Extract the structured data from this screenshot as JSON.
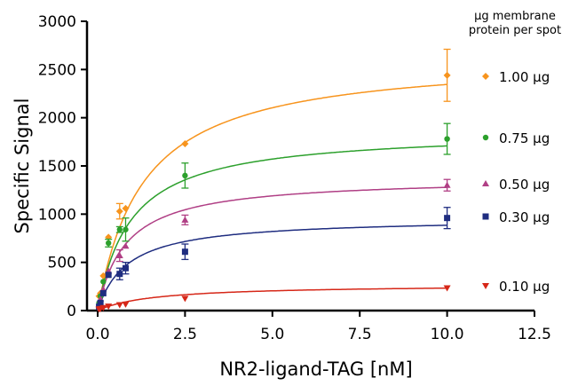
{
  "chart_data": {
    "type": "scatter",
    "title": "",
    "xlabel": "NR2-ligand-TAG [nM]",
    "ylabel": "Specific Signal",
    "xlim": [
      0,
      12.5
    ],
    "ylim": [
      0,
      3000
    ],
    "x_ticks": [
      "0.0",
      "2.5",
      "5.0",
      "7.5",
      "10.0",
      "12.5"
    ],
    "y_ticks": [
      "0",
      "500",
      "1000",
      "1500",
      "2000",
      "2500",
      "3000"
    ],
    "grid": false,
    "legend_title": [
      "µg membrane",
      "protein per spot"
    ],
    "legend_position": "right",
    "fit": "one-site saturation binding curve",
    "series": [
      {
        "name": "1.00 µg",
        "color": "#f7941d",
        "marker": "diamond",
        "bmax": 2650,
        "kd": 1.3,
        "points": [
          {
            "x": 0.04,
            "y": 150
          },
          {
            "x": 0.08,
            "y": 180
          },
          {
            "x": 0.16,
            "y": 360
          },
          {
            "x": 0.31,
            "y": 760
          },
          {
            "x": 0.63,
            "y": 1030,
            "err": 80
          },
          {
            "x": 0.8,
            "y": 1060
          },
          {
            "x": 2.5,
            "y": 1730
          },
          {
            "x": 10.0,
            "y": 2440,
            "err": 270
          }
        ]
      },
      {
        "name": "0.75 µg",
        "color": "#2ca02c",
        "marker": "circle",
        "bmax": 1870,
        "kd": 0.95,
        "points": [
          {
            "x": 0.04,
            "y": 80
          },
          {
            "x": 0.08,
            "y": 150
          },
          {
            "x": 0.16,
            "y": 300
          },
          {
            "x": 0.31,
            "y": 700,
            "err": 40
          },
          {
            "x": 0.63,
            "y": 840,
            "err": 30
          },
          {
            "x": 0.8,
            "y": 840,
            "err": 120
          },
          {
            "x": 2.5,
            "y": 1400,
            "err": 130
          },
          {
            "x": 10.0,
            "y": 1780,
            "err": 160
          }
        ]
      },
      {
        "name": "0.50 µg",
        "color": "#b03f85",
        "marker": "triangle-up",
        "bmax": 1380,
        "kd": 0.8,
        "points": [
          {
            "x": 0.04,
            "y": 60
          },
          {
            "x": 0.08,
            "y": 120
          },
          {
            "x": 0.16,
            "y": 220
          },
          {
            "x": 0.31,
            "y": 410
          },
          {
            "x": 0.63,
            "y": 570,
            "err": 60
          },
          {
            "x": 0.8,
            "y": 670
          },
          {
            "x": 2.5,
            "y": 940,
            "err": 50
          },
          {
            "x": 10.0,
            "y": 1300,
            "err": 60
          }
        ]
      },
      {
        "name": "0.30 µg",
        "color": "#1f2d80",
        "marker": "square",
        "bmax": 960,
        "kd": 0.85,
        "points": [
          {
            "x": 0.04,
            "y": 40
          },
          {
            "x": 0.08,
            "y": 80
          },
          {
            "x": 0.16,
            "y": 180
          },
          {
            "x": 0.31,
            "y": 370
          },
          {
            "x": 0.63,
            "y": 380,
            "err": 60
          },
          {
            "x": 0.8,
            "y": 440,
            "err": 60
          },
          {
            "x": 2.5,
            "y": 610,
            "err": 80
          },
          {
            "x": 10.0,
            "y": 960,
            "err": 110
          }
        ]
      },
      {
        "name": "0.10 µg",
        "color": "#d62718",
        "marker": "triangle-down",
        "bmax": 270,
        "kd": 1.6,
        "points": [
          {
            "x": 0.04,
            "y": 15
          },
          {
            "x": 0.08,
            "y": 20
          },
          {
            "x": 0.16,
            "y": 30
          },
          {
            "x": 0.31,
            "y": 45
          },
          {
            "x": 0.63,
            "y": 60
          },
          {
            "x": 0.8,
            "y": 65
          },
          {
            "x": 2.5,
            "y": 125
          },
          {
            "x": 10.0,
            "y": 235
          }
        ]
      }
    ]
  }
}
